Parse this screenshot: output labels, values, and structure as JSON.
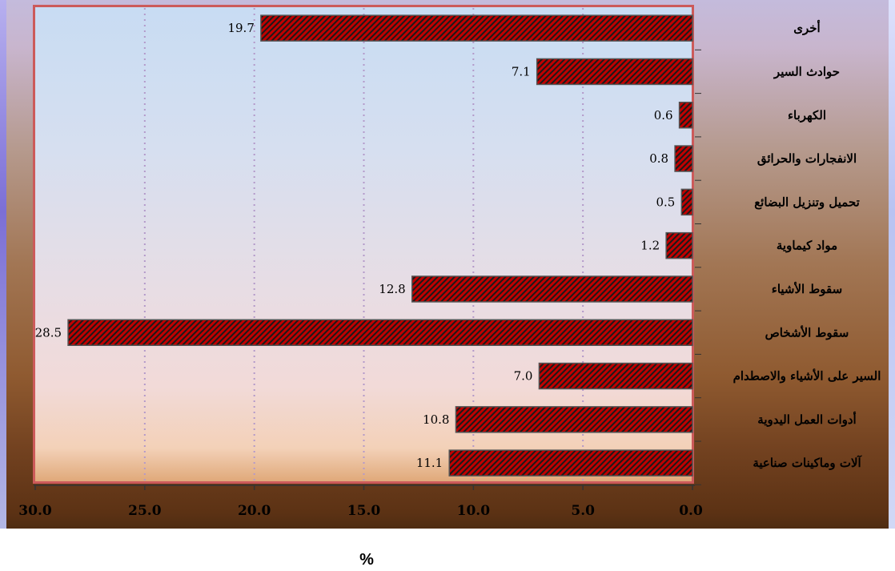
{
  "chart_data": {
    "type": "bar",
    "orientation": "horizontal",
    "x_axis_direction": "reversed",
    "categories": [
      "أخرى",
      "حوادث السير",
      "الكهرباء",
      "الانفجارات والحرائق",
      "تحميل وتنزيل البضائع",
      "مواد كيماوية",
      "سقوط الأشياء",
      "سقوط الأشخاص",
      "السير على الأشياء والاصطدام",
      "أدوات العمل اليدوية",
      "آلات وماكينات صناعية"
    ],
    "values": [
      19.7,
      7.1,
      0.6,
      0.8,
      0.5,
      1.2,
      12.8,
      28.5,
      7.0,
      10.8,
      11.1
    ],
    "value_labels": [
      "19.7",
      "7.1",
      "0.6",
      "0.8",
      "0.5",
      "1.2",
      "12.8",
      "28.5",
      "7.0",
      "10.8",
      "11.1"
    ],
    "xlim": [
      0,
      30
    ],
    "x_ticks": [
      "0.0",
      "5.0",
      "10.0",
      "15.0",
      "20.0",
      "25.0",
      "30.0"
    ],
    "xlabel": "%",
    "grid": "vertical dotted",
    "colors": {
      "bar": "#c00000",
      "bar_hatch": "#1a1a1a",
      "grid": "#b399c9",
      "plot_border": "#cc5a5a"
    }
  }
}
